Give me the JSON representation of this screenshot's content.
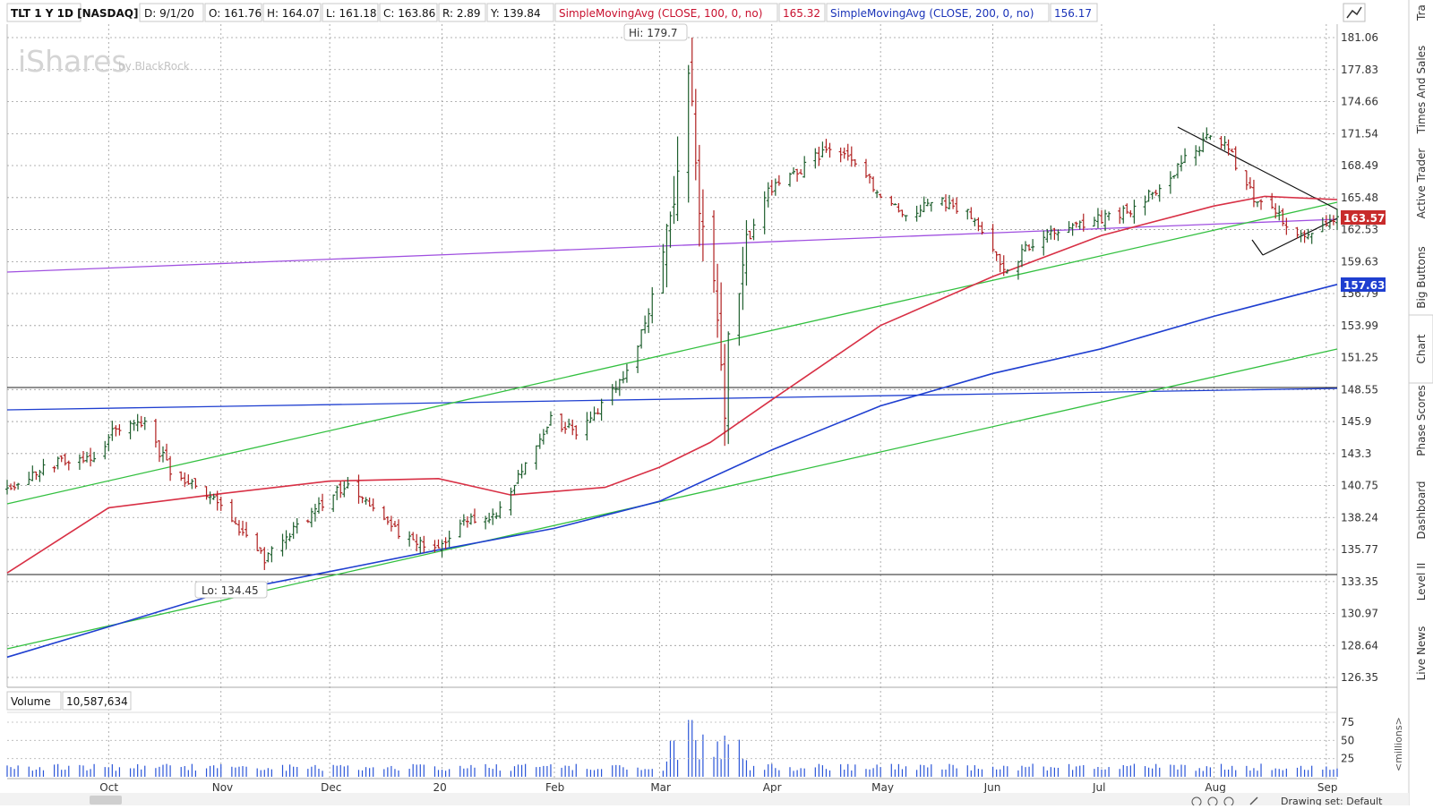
{
  "header": {
    "symbol": "TLT 1 Y 1D [NASDAQ]",
    "date": "D: 9/1/20",
    "open": "O: 161.76",
    "high": "H: 164.07",
    "low": "L: 161.18",
    "close": "C: 163.86",
    "range": "R: 2.89",
    "year": "Y: 139.84",
    "sma100_label": "SimpleMovingAvg (CLOSE, 100, 0, no)",
    "sma100_value": "165.32",
    "sma200_label": "SimpleMovingAvg (CLOSE, 200, 0, no)",
    "sma200_value": "156.17"
  },
  "watermark": {
    "brand": "iShares",
    "by": "by BlackRock"
  },
  "callouts": {
    "hi": "Hi: 179.7",
    "lo": "Lo: 134.45"
  },
  "badges": {
    "last_price": "163.57",
    "sma200_now": "157.63"
  },
  "volume": {
    "label": "Volume",
    "value": "10,587,634",
    "unit": "<millions>"
  },
  "side_tabs": [
    "Tra",
    "Times And Sales",
    "Active Trader",
    "Big Buttons",
    "Chart",
    "Phase Scores",
    "Dashboard",
    "Level II",
    "Live News"
  ],
  "footer": {
    "drawing_set": "Drawing set: Default"
  },
  "colors": {
    "up": "#1f5f2e",
    "down": "#b02020",
    "sma100": "#d83045",
    "sma200": "#1f3fd0",
    "trend_green": "#33c040",
    "trend_purple": "#a050e0",
    "badge_red": "#c82b2b",
    "badge_blue": "#1f3fd0"
  },
  "chart_data": {
    "type": "line",
    "subtype": "ohlc-bars",
    "x_labels": [
      "Oct",
      "Nov",
      "Dec",
      "20",
      "Feb",
      "Mar",
      "Apr",
      "May",
      "Jun",
      "Jul",
      "Aug",
      "Sep"
    ],
    "yticks": [
      "181.06",
      "177.83",
      "174.66",
      "171.54",
      "168.49",
      "165.48",
      "162.53",
      "159.63",
      "156.79",
      "153.99",
      "151.25",
      "148.55",
      "145.9",
      "143.3",
      "140.75",
      "138.24",
      "135.77",
      "133.35",
      "130.97",
      "128.64",
      "126.35"
    ],
    "ylim": [
      126.35,
      181.06
    ],
    "y_scale": "log",
    "volume_yticks": [
      "75",
      "50",
      "25"
    ],
    "grid": true,
    "close_path": {
      "dates": [
        "2019-09-03",
        "2019-09-15",
        "2019-09-27",
        "2019-10-04",
        "2019-10-10",
        "2019-10-18",
        "2019-11-01",
        "2019-11-07",
        "2019-11-13",
        "2019-11-20",
        "2019-12-02",
        "2019-12-06",
        "2019-12-13",
        "2019-12-20",
        "2019-12-31",
        "2020-01-08",
        "2020-01-15",
        "2020-01-24",
        "2020-01-31",
        "2020-02-07",
        "2020-02-14",
        "2020-02-21",
        "2020-02-27",
        "2020-03-05",
        "2020-03-09",
        "2020-03-12",
        "2020-03-16",
        "2020-03-18",
        "2020-03-19",
        "2020-03-20",
        "2020-03-24",
        "2020-03-31",
        "2020-04-09",
        "2020-04-17",
        "2020-04-22",
        "2020-05-01",
        "2020-05-08",
        "2020-05-18",
        "2020-05-26",
        "2020-06-05",
        "2020-06-10",
        "2020-06-19",
        "2020-06-30",
        "2020-07-10",
        "2020-07-20",
        "2020-07-31",
        "2020-08-05",
        "2020-08-12",
        "2020-08-20",
        "2020-08-25",
        "2020-08-31",
        "2020-09-04"
      ],
      "closes": [
        140.6,
        142.4,
        143.2,
        145.6,
        146.0,
        142.0,
        139.0,
        137.0,
        135.0,
        137.0,
        140.0,
        140.8,
        139.0,
        137.0,
        136.0,
        138.0,
        138.2,
        142.5,
        146.0,
        145.0,
        147.2,
        150.0,
        155.0,
        165.0,
        177.0,
        165.0,
        158.0,
        152.0,
        146.5,
        155.0,
        160.0,
        166.0,
        168.0,
        170.5,
        169.0,
        166.0,
        164.0,
        165.0,
        164.0,
        158.5,
        161.0,
        162.5,
        163.5,
        164.5,
        167.5,
        171.5,
        170.0,
        165.5,
        163.5,
        162.0,
        163.0,
        163.86
      ]
    },
    "series": [
      {
        "name": "SimpleMovingAvg (CLOSE, 100, 0, no)",
        "dates": [
          "2019-09-03",
          "2019-10-01",
          "2019-11-01",
          "2019-12-01",
          "2019-12-31",
          "2020-01-20",
          "2020-02-15",
          "2020-03-01",
          "2020-03-15",
          "2020-04-01",
          "2020-05-01",
          "2020-06-01",
          "2020-07-01",
          "2020-08-01",
          "2020-08-15",
          "2020-09-04"
        ],
        "values": [
          134.0,
          139.0,
          140.1,
          141.1,
          141.3,
          140.0,
          140.6,
          142.2,
          144.2,
          147.7,
          154.0,
          158.3,
          162.0,
          164.7,
          165.6,
          165.3
        ]
      },
      {
        "name": "SimpleMovingAvg (CLOSE, 200, 0, no)",
        "dates": [
          "2019-09-03",
          "2019-10-01",
          "2019-11-01",
          "2019-12-01",
          "2020-01-01",
          "2020-02-01",
          "2020-03-01",
          "2020-04-01",
          "2020-05-01",
          "2020-06-01",
          "2020-07-01",
          "2020-08-01",
          "2020-09-04"
        ],
        "values": [
          127.8,
          130.0,
          132.5,
          134.1,
          135.8,
          137.4,
          139.5,
          143.6,
          147.2,
          149.9,
          152.0,
          154.8,
          157.6
        ]
      }
    ]
  }
}
